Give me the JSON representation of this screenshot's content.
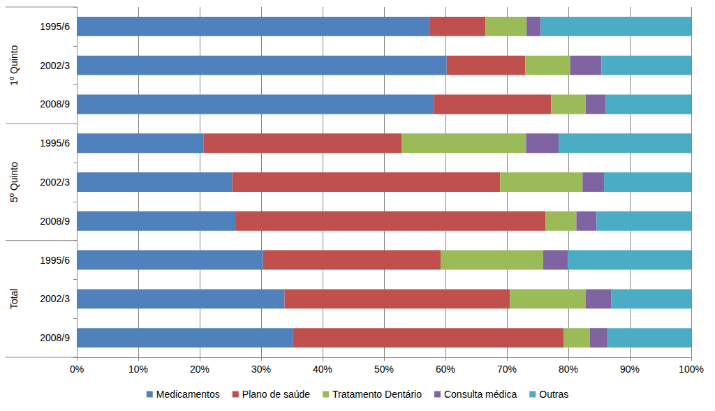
{
  "chart_data": {
    "type": "bar",
    "orientation": "horizontal",
    "stacked": true,
    "grid": true,
    "legend": "bottom",
    "categories": [
      "1995/6",
      "2002/3",
      "2008/9",
      "1995/6",
      "2002/3",
      "2008/9",
      "1995/6",
      "2002/3",
      "2008/9"
    ],
    "category_groups": [
      "1º Quinto",
      "5º Quinto",
      "Total"
    ],
    "series": [
      {
        "name": "Medicamentos",
        "color": "#4f81bd",
        "values": [
          57.3,
          60.2,
          58.1,
          20.6,
          25.3,
          25.8,
          30.3,
          33.8,
          35.2
        ]
      },
      {
        "name": "Plano de saúde",
        "color": "#c0504d",
        "values": [
          9.2,
          12.8,
          19.1,
          32.3,
          43.6,
          50.5,
          28.9,
          36.7,
          44.0
        ]
      },
      {
        "name": "Tratamento Dentário",
        "color": "#9bbb59",
        "values": [
          6.7,
          7.3,
          5.6,
          20.2,
          13.4,
          5.0,
          16.7,
          12.3,
          4.3
        ]
      },
      {
        "name": "Consulta médica",
        "color": "#8064a2",
        "values": [
          2.3,
          5.1,
          3.3,
          5.3,
          3.5,
          3.3,
          4.0,
          4.2,
          2.9
        ]
      },
      {
        "name": "Outras",
        "color": "#4bacc6",
        "values": [
          24.5,
          14.6,
          13.9,
          21.6,
          14.2,
          15.4,
          20.1,
          13.0,
          13.6
        ]
      }
    ],
    "xlim": [
      0,
      100
    ],
    "xticks": [
      {
        "value": 0,
        "label": "0%"
      },
      {
        "value": 10,
        "label": "10%"
      },
      {
        "value": 20,
        "label": "20%"
      },
      {
        "value": 30,
        "label": "30%"
      },
      {
        "value": 40,
        "label": "40%"
      },
      {
        "value": 50,
        "label": "50%"
      },
      {
        "value": 60,
        "label": "60%"
      },
      {
        "value": 70,
        "label": "70%"
      },
      {
        "value": 80,
        "label": "80%"
      },
      {
        "value": 90,
        "label": "90%"
      },
      {
        "value": 100,
        "label": "100%"
      }
    ]
  }
}
